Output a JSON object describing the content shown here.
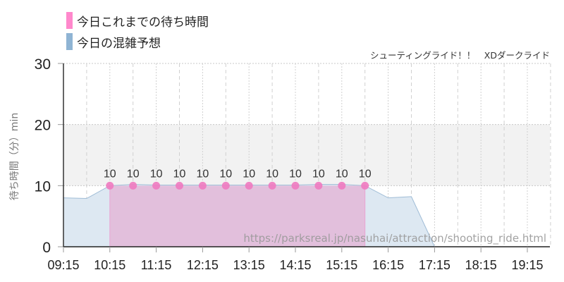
{
  "legend": {
    "items": [
      {
        "label": "今日これまでの待ち時間",
        "color": "#ff88cc"
      },
      {
        "label": "今日の混雑予想",
        "color": "#8fb4d4"
      }
    ]
  },
  "subtitle": "シューティングライド！！　XDダークライド",
  "watermark": "https://parksreal.jp/nasuhai/attraction/shooting_ride.html",
  "colors": {
    "actual_fill": "#e2bfdc",
    "actual_point": "#f07ac0",
    "forecast_fill": "#dde8f2",
    "forecast_line": "#9fbcd6",
    "band": "#f2f2f2"
  },
  "chart_data": {
    "type": "area",
    "title": "",
    "subtitle": "シューティングライド！！　XDダークライド",
    "xlabel": "",
    "ylabel": "待ち時間（分）min",
    "ylim": [
      0,
      30
    ],
    "yticks": [
      0,
      10,
      20,
      30
    ],
    "xticks": [
      "09:15",
      "10:15",
      "11:15",
      "12:15",
      "13:15",
      "14:15",
      "15:15",
      "16:15",
      "17:15",
      "18:15",
      "19:15"
    ],
    "grid": true,
    "shaded_band": [
      10,
      20
    ],
    "legend_position": "top-left",
    "series": [
      {
        "name": "今日これまでの待ち時間",
        "type": "area+points",
        "x": [
          "10:15",
          "10:45",
          "11:15",
          "11:45",
          "12:15",
          "12:45",
          "13:15",
          "13:45",
          "14:15",
          "14:45",
          "15:15",
          "15:45"
        ],
        "values": [
          10,
          10,
          10,
          10,
          10,
          10,
          10,
          10,
          10,
          10,
          10,
          10
        ]
      },
      {
        "name": "今日の混雑予想",
        "type": "area",
        "x": [
          "09:15",
          "09:45",
          "10:15",
          "10:45",
          "11:15",
          "11:45",
          "12:15",
          "12:45",
          "13:15",
          "13:45",
          "14:15",
          "14:45",
          "15:15",
          "15:45",
          "16:15",
          "16:45",
          "17:15",
          "17:45",
          "18:15",
          "18:45",
          "19:15",
          "19:45"
        ],
        "values": [
          8,
          7.9,
          10,
          10.2,
          10.1,
          10.1,
          10.1,
          10.1,
          10.1,
          10.1,
          10.1,
          10.2,
          10.2,
          10,
          8,
          8.2,
          0,
          0,
          0,
          0,
          0,
          0
        ]
      }
    ]
  }
}
